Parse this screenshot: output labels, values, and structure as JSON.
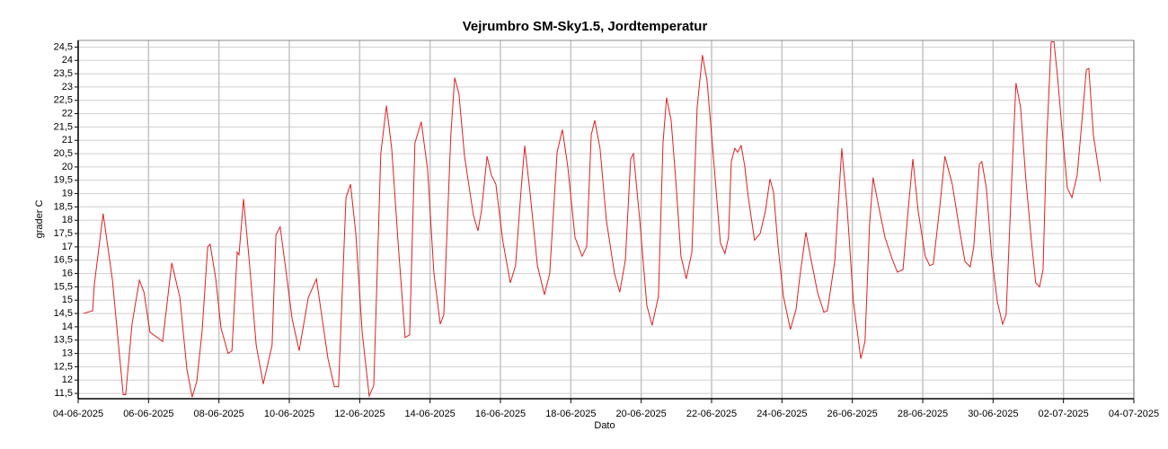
{
  "chart_data": {
    "type": "line",
    "title": "Vejrumbro SM-Sky1.5, Jordtemperatur",
    "x_label": "Dato",
    "y_label": "grader C",
    "grid": true,
    "xlim": [
      0,
      30
    ],
    "ylim": [
      11.3,
      24.75
    ],
    "xticks": [
      {
        "value": 0,
        "label": "04-06-2025"
      },
      {
        "value": 2,
        "label": "06-06-2025"
      },
      {
        "value": 4,
        "label": "08-06-2025"
      },
      {
        "value": 6,
        "label": "10-06-2025"
      },
      {
        "value": 8,
        "label": "12-06-2025"
      },
      {
        "value": 10,
        "label": "14-06-2025"
      },
      {
        "value": 12,
        "label": "16-06-2025"
      },
      {
        "value": 14,
        "label": "18-06-2025"
      },
      {
        "value": 16,
        "label": "20-06-2025"
      },
      {
        "value": 18,
        "label": "22-06-2025"
      },
      {
        "value": 20,
        "label": "24-06-2025"
      },
      {
        "value": 22,
        "label": "26-06-2025"
      },
      {
        "value": 24,
        "label": "28-06-2025"
      },
      {
        "value": 26,
        "label": "30-06-2025"
      },
      {
        "value": 28,
        "label": "02-07-2025"
      },
      {
        "value": 30,
        "label": "04-07-2025"
      }
    ],
    "yticks": [
      {
        "value": 11.5,
        "label": "11,5"
      },
      12,
      {
        "value": 12.5,
        "label": "12,5"
      },
      13,
      {
        "value": 13.5,
        "label": "13,5"
      },
      14,
      {
        "value": 14.5,
        "label": "14,5"
      },
      15,
      {
        "value": 15.5,
        "label": "15,5"
      },
      16,
      {
        "value": 16.5,
        "label": "16,5"
      },
      17,
      {
        "value": 17.5,
        "label": "17,5"
      },
      18,
      {
        "value": 18.5,
        "label": "18,5"
      },
      19,
      {
        "value": 19.5,
        "label": "19,5"
      },
      20,
      {
        "value": 20.5,
        "label": "20,5"
      },
      21,
      {
        "value": 21.5,
        "label": "21,5"
      },
      22,
      {
        "value": 22.5,
        "label": "22,5"
      },
      23,
      {
        "value": 23.5,
        "label": "23,5"
      },
      24,
      {
        "value": 24.5,
        "label": "24,5"
      }
    ],
    "x": [
      0.15,
      0.41,
      0.46,
      0.71,
      0.97,
      1.28,
      1.35,
      1.53,
      1.74,
      1.87,
      2.04,
      2.4,
      2.66,
      2.89,
      3.09,
      3.24,
      3.37,
      3.52,
      3.68,
      3.75,
      3.91,
      4.06,
      4.26,
      4.37,
      4.52,
      4.57,
      4.7,
      4.86,
      5.06,
      5.26,
      5.51,
      5.62,
      5.74,
      5.9,
      6.08,
      6.28,
      6.54,
      6.77,
      7.1,
      7.28,
      7.4,
      7.61,
      7.74,
      7.89,
      8.07,
      8.27,
      8.4,
      8.6,
      8.76,
      8.91,
      9.09,
      9.29,
      9.42,
      9.57,
      9.75,
      9.93,
      10.11,
      10.29,
      10.39,
      10.59,
      10.7,
      10.82,
      10.98,
      11.23,
      11.36,
      11.46,
      11.62,
      11.74,
      11.87,
      12.07,
      12.28,
      12.43,
      12.59,
      12.69,
      12.84,
      13.05,
      13.25,
      13.4,
      13.61,
      13.76,
      13.91,
      14.12,
      14.32,
      14.45,
      14.58,
      14.68,
      14.83,
      15.01,
      15.24,
      15.39,
      15.55,
      15.7,
      15.78,
      15.96,
      16.16,
      16.31,
      16.49,
      16.62,
      16.72,
      16.85,
      16.98,
      17.13,
      17.28,
      17.44,
      17.59,
      17.74,
      17.87,
      18.02,
      18.25,
      18.38,
      18.48,
      18.56,
      18.66,
      18.74,
      18.84,
      18.94,
      19.04,
      19.22,
      19.38,
      19.53,
      19.66,
      19.76,
      19.89,
      20.04,
      20.24,
      20.4,
      20.5,
      20.68,
      20.83,
      21.01,
      21.19,
      21.29,
      21.5,
      21.7,
      21.85,
      22.03,
      22.24,
      22.36,
      22.49,
      22.59,
      22.75,
      22.93,
      23.13,
      23.28,
      23.44,
      23.56,
      23.72,
      23.87,
      24.07,
      24.2,
      24.3,
      24.48,
      24.63,
      24.84,
      25.04,
      25.2,
      25.35,
      25.45,
      25.61,
      25.68,
      25.81,
      25.96,
      26.12,
      26.27,
      26.37,
      26.53,
      26.65,
      26.78,
      26.93,
      27.09,
      27.21,
      27.32,
      27.42,
      27.52,
      27.65,
      27.73,
      27.83,
      27.95,
      28.11,
      28.24,
      28.39,
      28.49,
      28.65,
      28.72,
      28.85,
      29.05
    ],
    "series": [
      {
        "name": "Jordtemperatur",
        "color": "#e02020",
        "values": [
          14.5,
          14.6,
          15.6,
          18.25,
          15.8,
          11.45,
          11.45,
          14.1,
          15.75,
          15.3,
          13.8,
          13.45,
          16.4,
          15.1,
          12.4,
          11.36,
          11.95,
          13.8,
          17.0,
          17.1,
          15.8,
          13.95,
          13.0,
          13.1,
          16.8,
          16.7,
          18.8,
          16.5,
          13.3,
          11.85,
          13.3,
          17.45,
          17.75,
          16.15,
          14.3,
          13.1,
          15.1,
          15.8,
          12.8,
          11.75,
          11.75,
          18.85,
          19.35,
          17.5,
          13.8,
          11.4,
          11.8,
          20.5,
          22.3,
          20.7,
          17.2,
          13.6,
          13.7,
          20.9,
          21.7,
          19.9,
          16.0,
          14.1,
          14.45,
          21.2,
          23.35,
          22.75,
          20.4,
          18.2,
          17.6,
          18.35,
          20.4,
          19.7,
          19.35,
          17.2,
          15.65,
          16.3,
          19.2,
          20.8,
          19.05,
          16.3,
          15.2,
          16.0,
          20.55,
          21.4,
          20.05,
          17.35,
          16.65,
          17.0,
          21.2,
          21.75,
          20.7,
          18.0,
          16.0,
          15.3,
          16.5,
          20.3,
          20.5,
          18.0,
          14.8,
          14.05,
          15.15,
          20.9,
          22.6,
          21.75,
          19.55,
          16.65,
          15.8,
          16.8,
          22.25,
          24.2,
          23.25,
          20.9,
          17.15,
          16.75,
          17.35,
          20.2,
          20.7,
          20.55,
          20.8,
          20.05,
          18.9,
          17.25,
          17.5,
          18.35,
          19.55,
          19.05,
          17.0,
          15.15,
          13.9,
          14.65,
          15.8,
          17.55,
          16.5,
          15.3,
          14.55,
          14.6,
          16.45,
          20.7,
          18.5,
          14.95,
          12.8,
          13.45,
          17.85,
          19.6,
          18.5,
          17.35,
          16.55,
          16.05,
          16.15,
          18.0,
          20.3,
          18.35,
          16.65,
          16.3,
          16.35,
          18.45,
          20.4,
          19.35,
          17.7,
          16.45,
          16.25,
          17.0,
          20.1,
          20.2,
          19.2,
          16.65,
          14.95,
          14.1,
          14.45,
          19.55,
          23.15,
          22.25,
          19.55,
          17.2,
          15.65,
          15.5,
          16.15,
          20.9,
          24.7,
          24.7,
          23.4,
          21.55,
          19.2,
          18.85,
          19.7,
          21.2,
          23.65,
          23.7,
          21.2,
          19.45
        ]
      }
    ]
  }
}
